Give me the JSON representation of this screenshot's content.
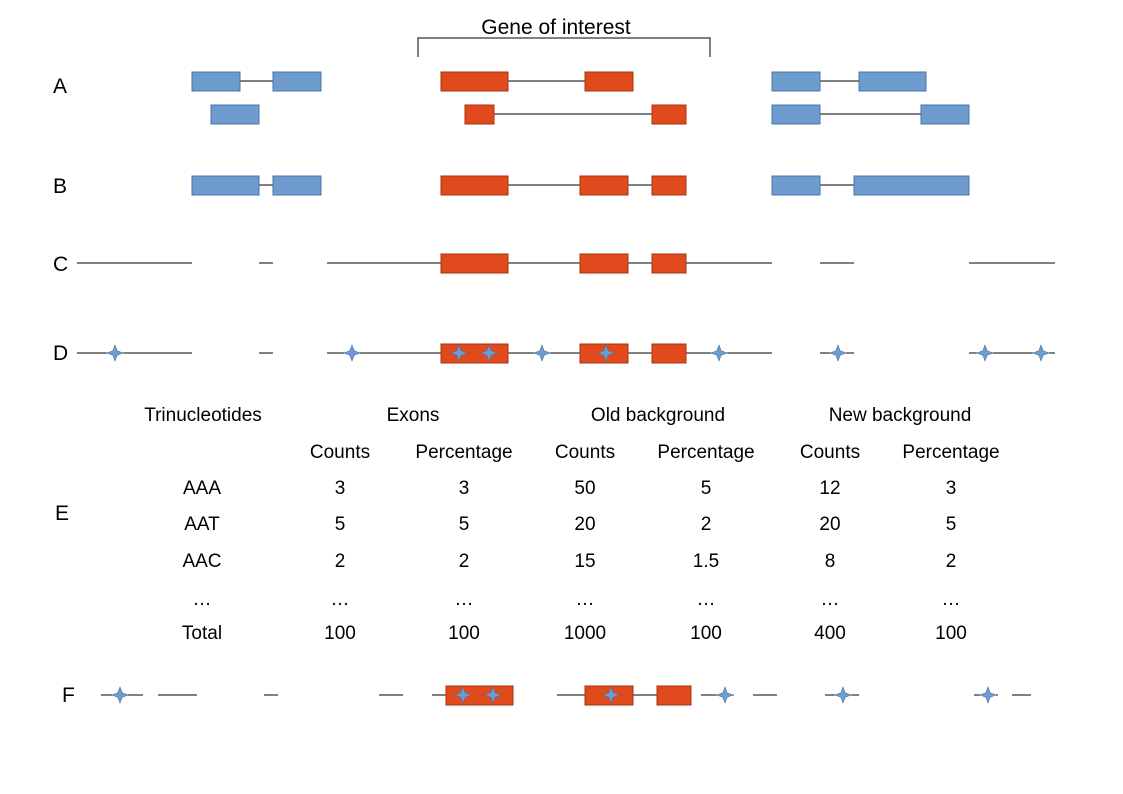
{
  "title": "Gene of interest",
  "row_labels": [
    "A",
    "B",
    "C",
    "D",
    "E",
    "F"
  ],
  "colors": {
    "gene_exon": "#e04a1c",
    "gene_exon_border": "#a83410",
    "other_exon": "#6e9ccf",
    "other_exon_border": "#4a74a6",
    "line": "#000000",
    "mutation": "#6e9ccf"
  },
  "icons": {
    "mutation": "four-point-star-icon"
  },
  "table": {
    "group_headers": [
      "Trinucleotides",
      "Exons",
      "Old background",
      "New background"
    ],
    "sub_headers": [
      "Counts",
      "Percentage",
      "Counts",
      "Percentage",
      "Counts",
      "Percentage"
    ],
    "rows": [
      [
        "AAA",
        "3",
        "3",
        "50",
        "5",
        "12",
        "3"
      ],
      [
        "AAT",
        "5",
        "5",
        "20",
        "2",
        "20",
        "5"
      ],
      [
        "AAC",
        "2",
        "2",
        "15",
        "1.5",
        "8",
        "2"
      ],
      [
        "…",
        "…",
        "…",
        "…",
        "…",
        "…",
        "…"
      ],
      [
        "Total",
        "100",
        "100",
        "1000",
        "100",
        "400",
        "100"
      ]
    ]
  }
}
